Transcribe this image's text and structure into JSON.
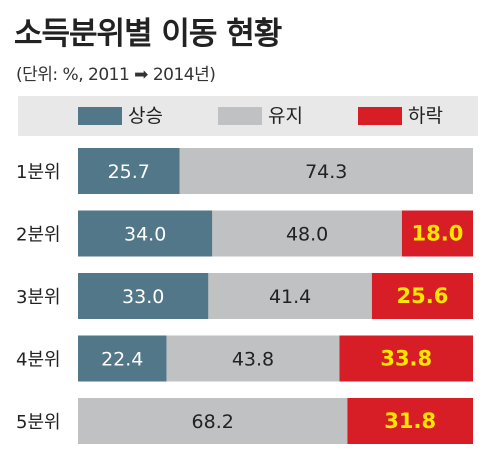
{
  "title": "소득분위별 이동 현황",
  "subtitle": "(단위: %, 2011 ➡ 2014년)",
  "colors": {
    "up": "#527789",
    "stay": "#bfc1c3",
    "down": "#d71e27",
    "down_text": "#ffe600"
  },
  "chart_data": {
    "type": "bar",
    "orientation": "horizontal",
    "stacked": true,
    "categories": [
      "1분위",
      "2분위",
      "3분위",
      "4분위",
      "5분위"
    ],
    "series": [
      {
        "name": "상승",
        "values": [
          25.7,
          34.0,
          33.0,
          22.4,
          0
        ],
        "labels": [
          "25.7",
          "34.0",
          "33.0",
          "22.4",
          ""
        ]
      },
      {
        "name": "유지",
        "values": [
          74.3,
          48.0,
          41.4,
          43.8,
          68.2
        ],
        "labels": [
          "74.3",
          "48.0",
          "41.4",
          "43.8",
          "68.2"
        ]
      },
      {
        "name": "하락",
        "values": [
          0,
          18.0,
          25.6,
          33.8,
          31.8
        ],
        "labels": [
          "",
          "18.0",
          "25.6",
          "33.8",
          "31.8"
        ]
      }
    ],
    "xlim": [
      0,
      100
    ],
    "legend": "top"
  }
}
